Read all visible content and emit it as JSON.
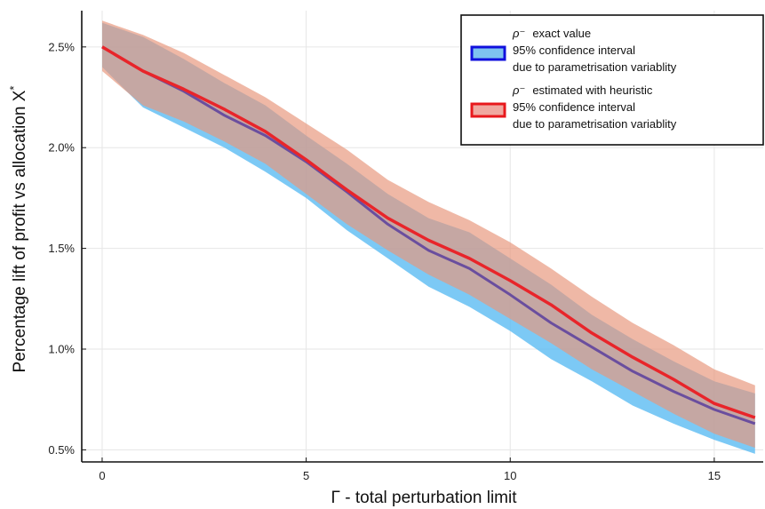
{
  "chart_data": {
    "type": "line",
    "title": "",
    "xlabel": "Γ - total perturbation limit",
    "ylabel": "Percentage lift of profit vs allocation X",
    "ylabel_superscript": "*",
    "xlim": [
      -0.5,
      16.2
    ],
    "ylim": [
      0.44,
      2.68
    ],
    "xticks": [
      0,
      5,
      10,
      15
    ],
    "yticks": [
      0.5,
      1.0,
      1.5,
      2.0,
      2.5
    ],
    "ytick_labels": [
      "0.5%",
      "1.0%",
      "1.5%",
      "2.0%",
      "2.5%"
    ],
    "grid": true,
    "legend_position": "top-right",
    "x": [
      0,
      1,
      2,
      3,
      4,
      5,
      6,
      7,
      8,
      9,
      10,
      11,
      12,
      13,
      14,
      15,
      16
    ],
    "series": [
      {
        "legend_symbol": "ρ⁻",
        "legend_lines": [
          "exact value",
          "95% confidence interval",
          "due to parametrisation variablity"
        ],
        "line_color": "#6a4e9e",
        "band_color": "#5bbcf2",
        "legend_line_color": "#1010dd",
        "legend_fill_color": "#7ec3f0",
        "values": [
          2.5,
          2.38,
          2.28,
          2.16,
          2.06,
          1.93,
          1.78,
          1.62,
          1.49,
          1.4,
          1.27,
          1.13,
          1.01,
          0.89,
          0.79,
          0.7,
          0.63
        ],
        "lower": [
          2.4,
          2.2,
          2.1,
          2.0,
          1.88,
          1.75,
          1.59,
          1.45,
          1.31,
          1.21,
          1.09,
          0.95,
          0.84,
          0.72,
          0.63,
          0.55,
          0.48
        ],
        "upper": [
          2.62,
          2.55,
          2.44,
          2.32,
          2.21,
          2.06,
          1.92,
          1.77,
          1.65,
          1.58,
          1.45,
          1.32,
          1.17,
          1.05,
          0.94,
          0.84,
          0.78
        ]
      },
      {
        "legend_symbol": "ρ⁻",
        "legend_lines": [
          "estimated with heuristic",
          "95% confidence interval",
          "due to parametrisation variablity"
        ],
        "line_color": "#e8252a",
        "band_color": "#e8967c",
        "legend_line_color": "#e8181c",
        "legend_fill_color": "#f0a8a0",
        "values": [
          2.5,
          2.38,
          2.29,
          2.19,
          2.08,
          1.94,
          1.79,
          1.65,
          1.54,
          1.45,
          1.34,
          1.22,
          1.08,
          0.96,
          0.85,
          0.73,
          0.66
        ],
        "lower": [
          2.38,
          2.21,
          2.13,
          2.03,
          1.92,
          1.77,
          1.62,
          1.49,
          1.37,
          1.27,
          1.15,
          1.03,
          0.9,
          0.79,
          0.68,
          0.58,
          0.51
        ],
        "upper": [
          2.63,
          2.56,
          2.47,
          2.36,
          2.25,
          2.12,
          1.99,
          1.84,
          1.73,
          1.64,
          1.53,
          1.4,
          1.26,
          1.13,
          1.02,
          0.9,
          0.82
        ]
      }
    ]
  }
}
